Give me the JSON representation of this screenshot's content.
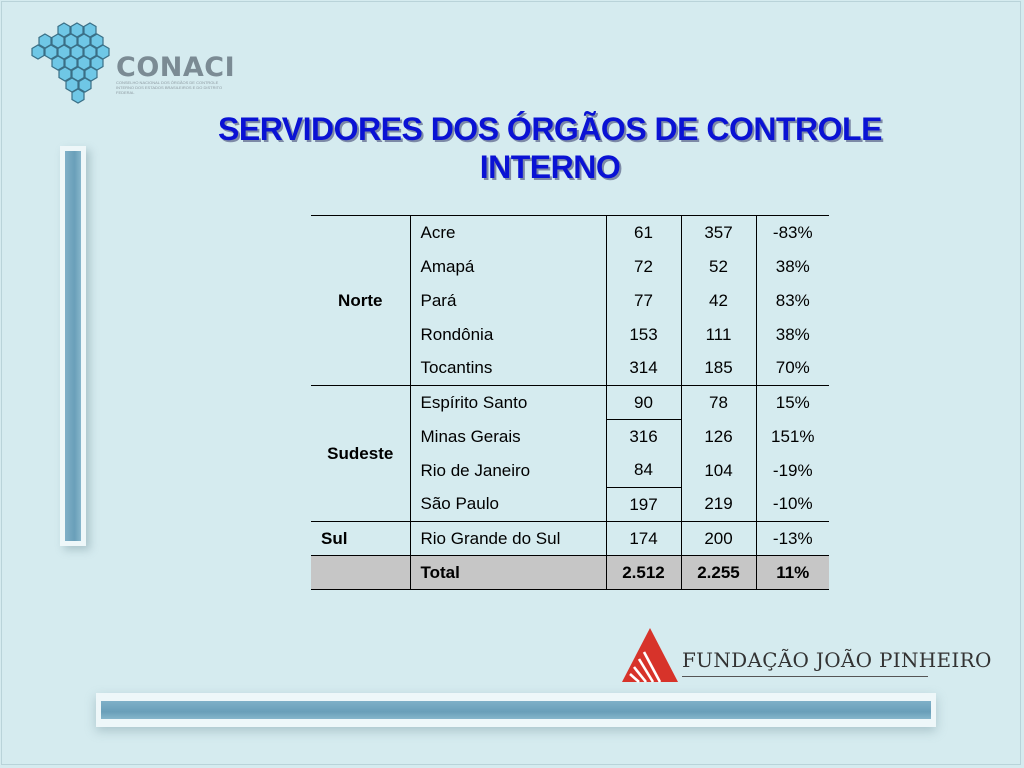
{
  "header": {
    "logo_text": "CONACI",
    "logo_subtitle": "CONSELHO NACIONAL DOS ÓRGÃOS DE CONTROLE INTERNO DOS ESTADOS BRASILEIROS E DO DISTRITO FEDERAL",
    "title_line1": "SERVIDORES DOS ÓRGÃOS DE CONTROLE",
    "title_line2": "INTERNO"
  },
  "table": {
    "regions": [
      {
        "name": "Norte",
        "rows": [
          {
            "state": "Acre",
            "v1": "61",
            "v2": "357",
            "pct": "-83%"
          },
          {
            "state": "Amapá",
            "v1": "72",
            "v2": "52",
            "pct": "38%"
          },
          {
            "state": "Pará",
            "v1": "77",
            "v2": "42",
            "pct": "83%"
          },
          {
            "state": "Rondônia",
            "v1": "153",
            "v2": "111",
            "pct": "38%"
          },
          {
            "state": "Tocantins",
            "v1": "314",
            "v2": "185",
            "pct": "70%"
          }
        ]
      },
      {
        "name": "Sudeste",
        "rows": [
          {
            "state": "Espírito Santo",
            "v1": "90",
            "v2": "78",
            "pct": "15%"
          },
          {
            "state": "Minas Gerais",
            "v1": "316",
            "v2": "126",
            "pct": "151%"
          },
          {
            "state": "Rio de Janeiro",
            "v1": "84",
            "v2": "104",
            "pct": "-19%"
          },
          {
            "state": "São Paulo",
            "v1": "197",
            "v2": "219",
            "pct": "-10%"
          }
        ]
      },
      {
        "name": "Sul",
        "rows": [
          {
            "state": "Rio Grande do Sul",
            "v1": "174",
            "v2": "200",
            "pct": "-13%"
          }
        ]
      }
    ],
    "total": {
      "label": "Total",
      "v1": "2.512",
      "v2": "2.255",
      "pct": "11%"
    }
  },
  "footer": {
    "logo_text": "FUNDAÇÃO JOÃO PINHEIRO"
  },
  "colors": {
    "background": "#d5ebef",
    "title": "#0a12d4",
    "accent_bar": "#6a9fb9",
    "fjp_red": "#d7332a"
  }
}
